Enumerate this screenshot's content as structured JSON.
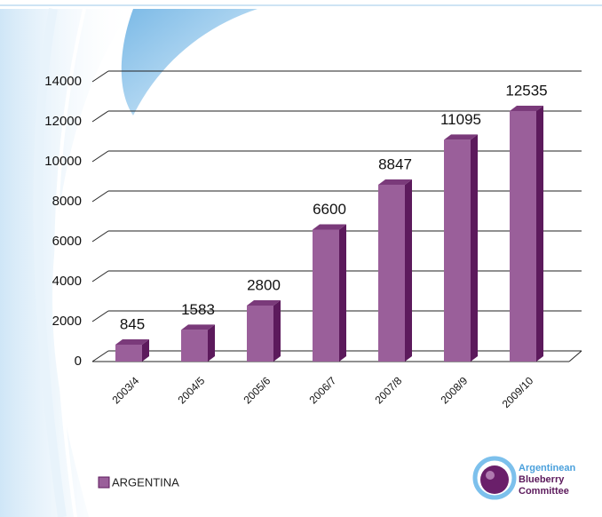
{
  "chart_data": {
    "type": "bar3d",
    "categories": [
      "2003/4",
      "2004/5",
      "2005/6",
      "2006/7",
      "2007/8",
      "2008/9",
      "2009/10"
    ],
    "series": [
      {
        "name": "ARGENTINA",
        "color": "#9a5f9a",
        "values": [
          845,
          1583,
          2800,
          6600,
          8847,
          11095,
          12535
        ]
      }
    ],
    "ylim": [
      0,
      14000
    ],
    "yticks": [
      0,
      2000,
      4000,
      6000,
      8000,
      10000,
      12000,
      14000
    ],
    "grid": true,
    "legend": "bottom-left"
  },
  "logo": {
    "lines": [
      "Argentinean",
      "Blueberry",
      "Committee"
    ]
  }
}
